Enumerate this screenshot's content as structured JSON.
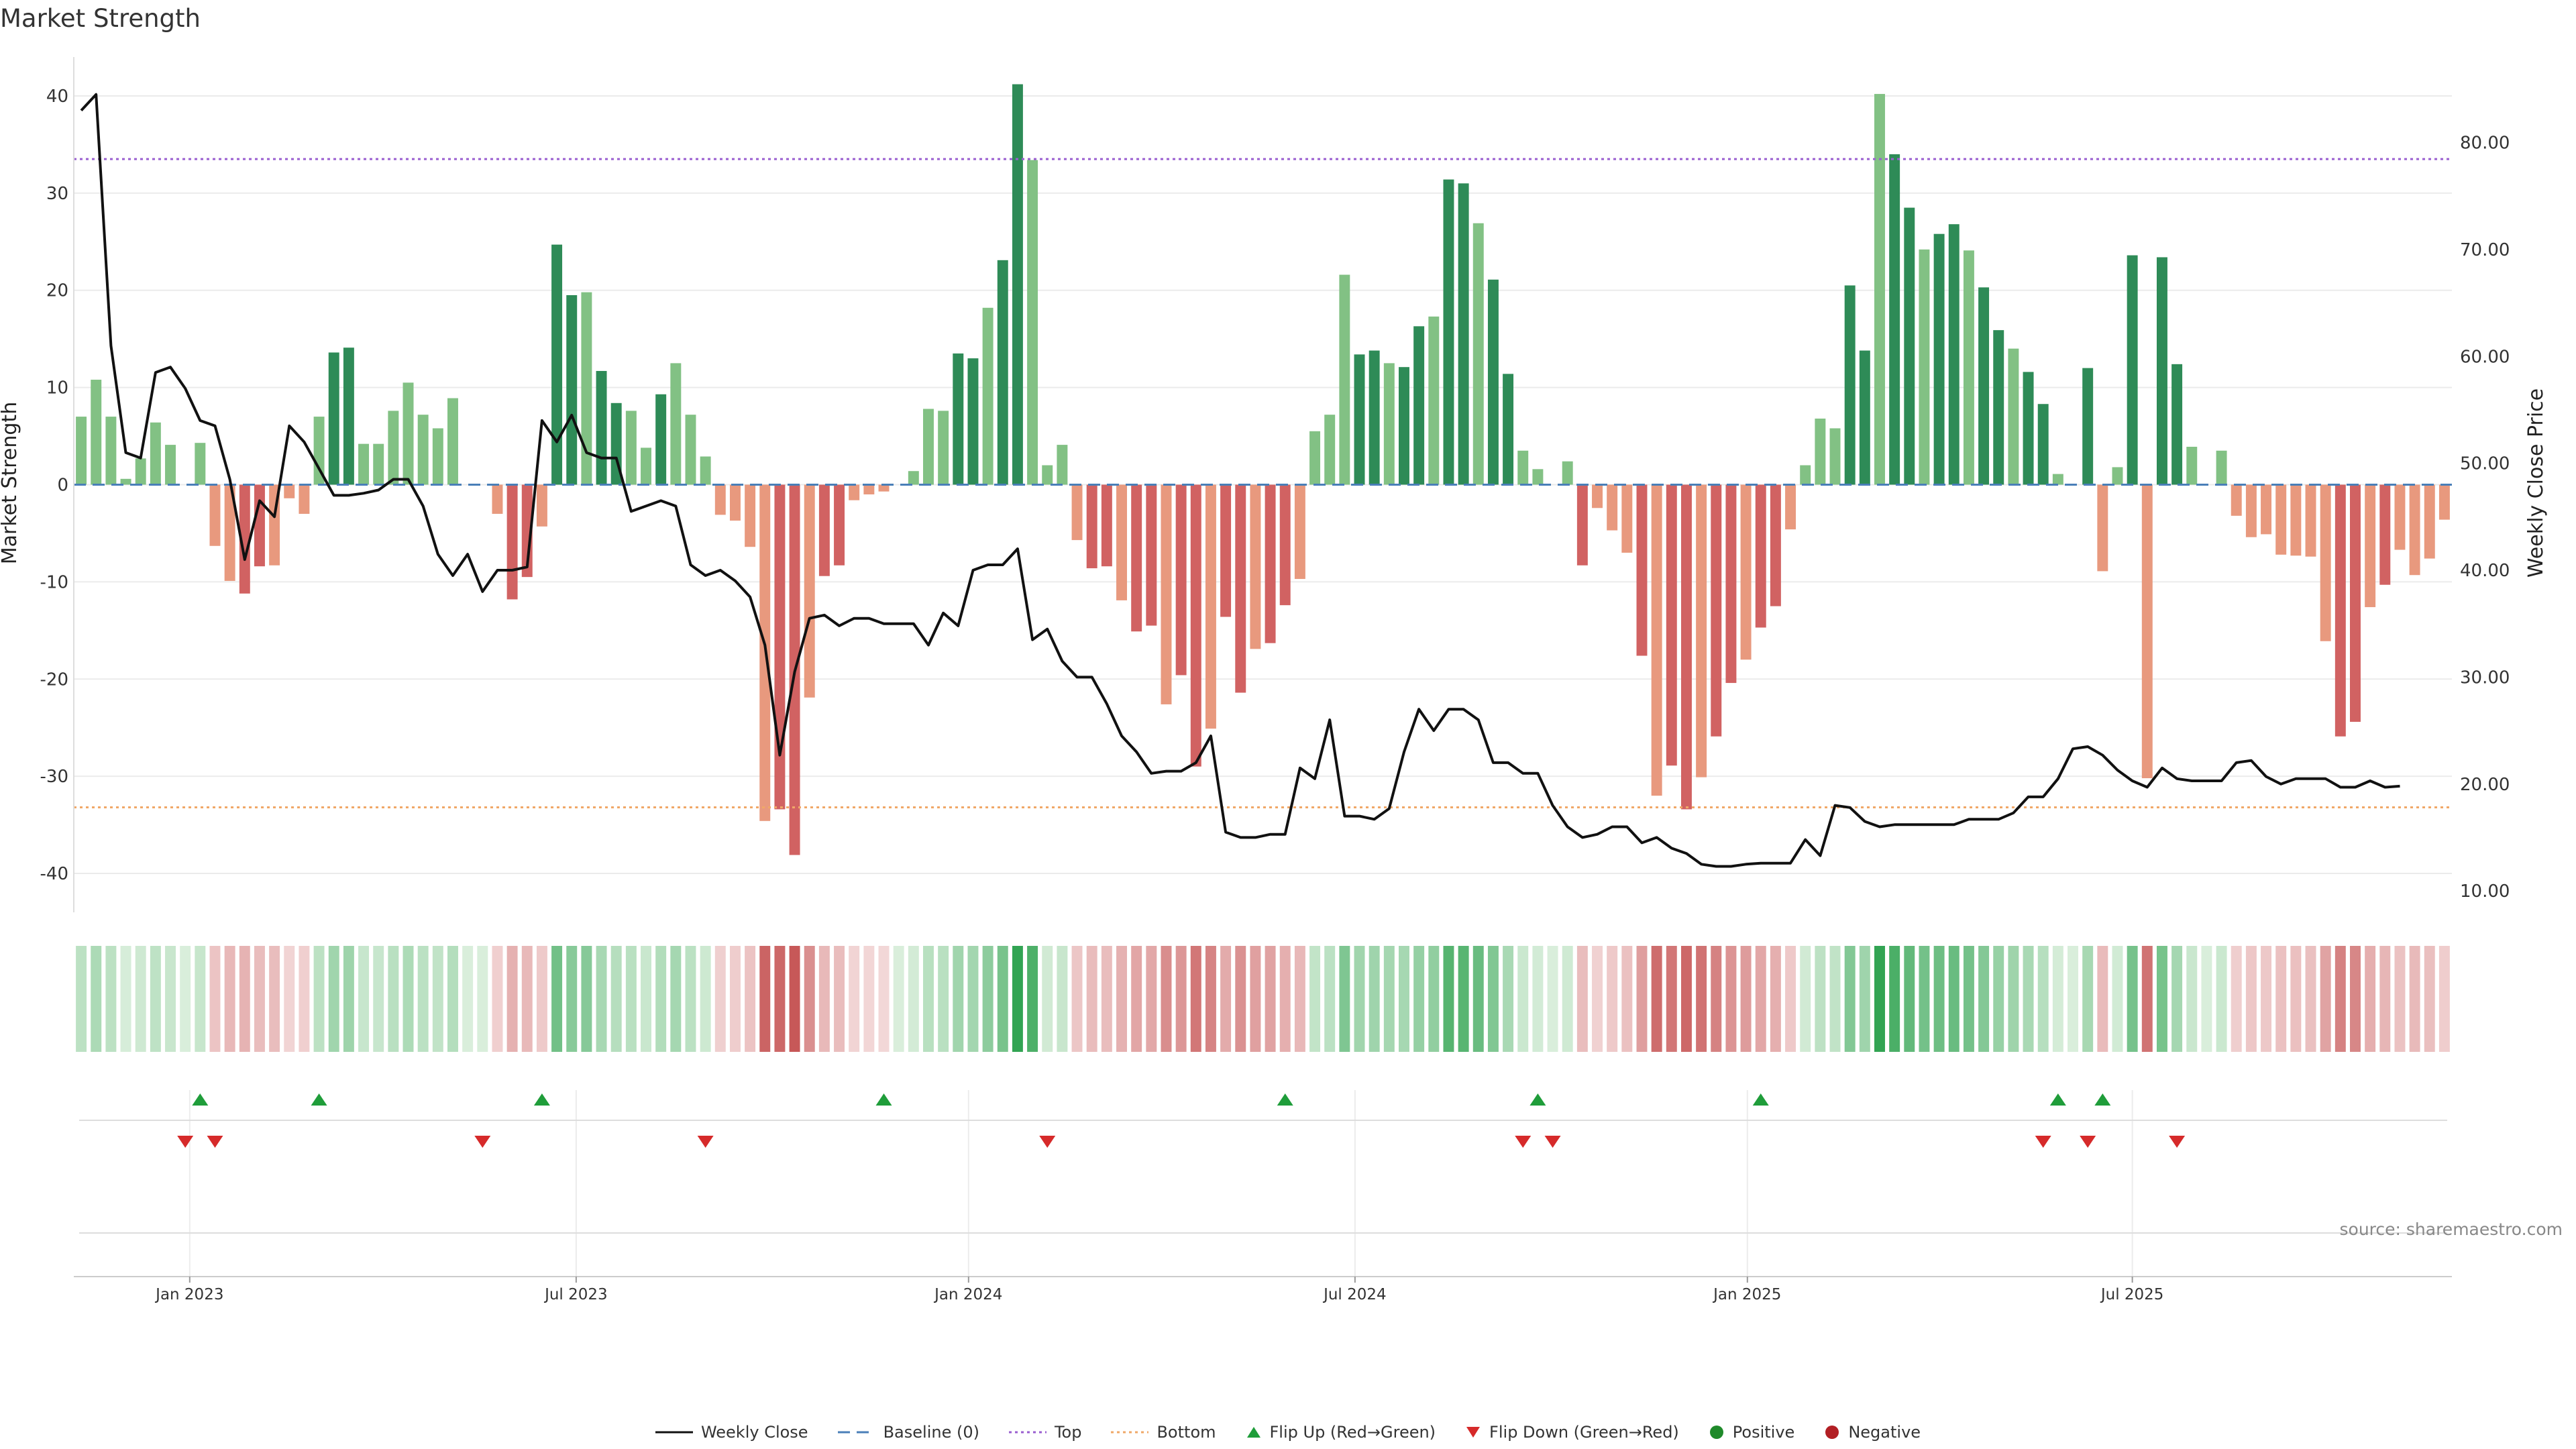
{
  "title": "Market Strength",
  "source": "source: sharemaestro.com",
  "chart_data": {
    "type": "bar",
    "title": "Market Strength",
    "ylabel": "Market Strength",
    "y2label": "Weekly Close Price",
    "ylim": [
      -44,
      44
    ],
    "y2lim": [
      8,
      88
    ],
    "yticks": [
      40,
      30,
      20,
      10,
      0,
      -10,
      -20,
      -30,
      -40
    ],
    "y2ticks": [
      "80.00",
      "70.00",
      "60.00",
      "50.00",
      "40.00",
      "30.00",
      "20.00",
      "10.00"
    ],
    "top_threshold": 33.5,
    "bottom_threshold": -33.2,
    "start_week_index": 0,
    "x_ticks": [
      {
        "label": "Jan 2023",
        "week": 7.8
      },
      {
        "label": "Jul 2023",
        "week": 33.8
      },
      {
        "label": "Jan 2024",
        "week": 60.2
      },
      {
        "label": "Jul 2024",
        "week": 86.2
      },
      {
        "label": "Jan 2025",
        "week": 112.6
      },
      {
        "label": "Jul 2025",
        "week": 138.5
      }
    ],
    "strength": [
      7,
      10.8,
      7,
      0.6,
      2.7,
      6.4,
      4.1,
      0,
      4.3,
      -6.3,
      -9.9,
      -11.2,
      -8.4,
      -8.3,
      -1.4,
      -3,
      7,
      13.6,
      14.1,
      4.2,
      4.2,
      7.6,
      10.5,
      7.2,
      5.8,
      8.9,
      0,
      0,
      -3,
      -11.8,
      -9.5,
      -4.3,
      24.7,
      19.5,
      19.8,
      11.7,
      8.4,
      7.6,
      3.8,
      9.3,
      12.5,
      7.2,
      2.9,
      -3.1,
      -3.7,
      -6.4,
      -34.6,
      -33.4,
      -38.1,
      -21.9,
      -9.4,
      -8.3,
      -1.6,
      -1,
      -0.7,
      0,
      1.4,
      7.8,
      7.6,
      13.5,
      13,
      18.2,
      23.1,
      41.2,
      33.4,
      2,
      4.1,
      -5.7,
      -8.6,
      -8.4,
      -11.9,
      -15.1,
      -14.5,
      -22.6,
      -19.6,
      -29,
      -25.1,
      -13.6,
      -21.4,
      -16.9,
      -16.3,
      -12.4,
      -9.7,
      5.5,
      7.2,
      21.6,
      13.4,
      13.8,
      12.5,
      12.1,
      16.3,
      17.3,
      31.4,
      31,
      26.9,
      21.1,
      11.4,
      3.5,
      1.6,
      0,
      2.4,
      -8.3,
      -2.4,
      -4.7,
      -7,
      -17.6,
      -32,
      -28.9,
      -33.4,
      -30.1,
      -25.9,
      -20.4,
      -18,
      -14.7,
      -12.5,
      -4.6,
      2,
      6.8,
      5.8,
      20.5,
      13.8,
      40.2,
      34,
      28.5,
      24.2,
      25.8,
      26.8,
      24.1,
      20.3,
      15.9,
      14,
      11.6,
      8.3,
      1.1,
      0,
      12,
      -8.9,
      1.8,
      23.6,
      -30.2,
      23.4,
      12.4,
      3.9,
      0,
      3.5,
      -3.2,
      -5.4,
      -5.1,
      -7.2,
      -7.3,
      -7.4,
      -16.1,
      -25.9,
      -24.4,
      -12.6,
      -10.3,
      -6.7,
      -9.3,
      -7.6,
      -3.6
    ],
    "close": [
      83,
      84.5,
      61,
      51,
      50.5,
      58.5,
      59,
      57,
      54,
      53.5,
      48.5,
      41,
      46.5,
      45,
      53.5,
      52,
      49.5,
      47,
      47,
      47.2,
      47.5,
      48.5,
      48.5,
      46,
      41.5,
      39.5,
      41.5,
      38,
      40,
      40,
      40.3,
      54,
      52,
      54.5,
      51,
      50.5,
      50.5,
      45.5,
      46,
      46.5,
      46,
      40.5,
      39.5,
      40,
      39,
      37.5,
      33,
      22.7,
      30.5,
      35.5,
      35.8,
      34.8,
      35.5,
      35.5,
      35,
      35,
      35,
      33,
      36,
      34.8,
      40,
      40.5,
      40.5,
      42,
      33.5,
      34.5,
      31.5,
      30,
      30,
      27.5,
      24.5,
      23,
      21,
      21.2,
      21.2,
      22,
      24.5,
      15.5,
      15,
      15,
      15.3,
      15.3,
      21.5,
      20.5,
      26,
      17,
      17,
      16.7,
      17.7,
      23,
      27,
      25,
      27,
      27,
      26,
      22,
      22,
      21,
      21,
      18,
      16,
      15,
      15.3,
      16,
      16,
      14.5,
      15,
      14,
      13.5,
      12.5,
      12.3,
      12.3,
      12.5,
      12.6,
      12.6,
      12.6,
      14.8,
      13.3,
      18,
      17.8,
      16.5,
      16,
      16.2,
      16.2,
      16.2,
      16.2,
      16.2,
      16.7,
      16.7,
      16.7,
      17.3,
      18.8,
      18.8,
      20.5,
      23.3,
      23.5,
      22.7,
      21.3,
      20.3,
      19.7,
      21.5,
      20.5,
      20.3,
      20.3,
      20.3,
      22,
      22.2,
      20.7,
      20,
      20.5,
      20.5,
      20.5,
      19.7,
      19.7,
      20.3,
      19.7,
      19.8
    ],
    "flip_up_weeks": [
      8,
      16,
      31,
      54,
      81,
      98,
      113,
      133,
      136
    ],
    "flip_down_weeks": [
      7,
      9,
      27,
      42,
      65,
      97,
      99,
      132,
      135,
      141
    ]
  },
  "legend": {
    "weekly_close": "Weekly Close",
    "baseline": "Baseline (0)",
    "top": "Top",
    "bottom": "Bottom",
    "flip_up": "Flip Up (Red→Green)",
    "flip_down": "Flip Down (Green→Red)",
    "positive": "Positive",
    "negative": "Negative"
  },
  "colors": {
    "green_strong": "#2e8b57",
    "green_light": "#82c184",
    "red_strong": "#d16262",
    "red_light": "#e8997e",
    "close_line": "#111111",
    "baseline": "#4a7fb8",
    "top": "#9a5fd0",
    "bottom": "#f0a868",
    "flip_up": "#1f9d3a",
    "flip_down": "#d62a2a",
    "positive": "#1f8a2a",
    "negative": "#b21f24"
  }
}
